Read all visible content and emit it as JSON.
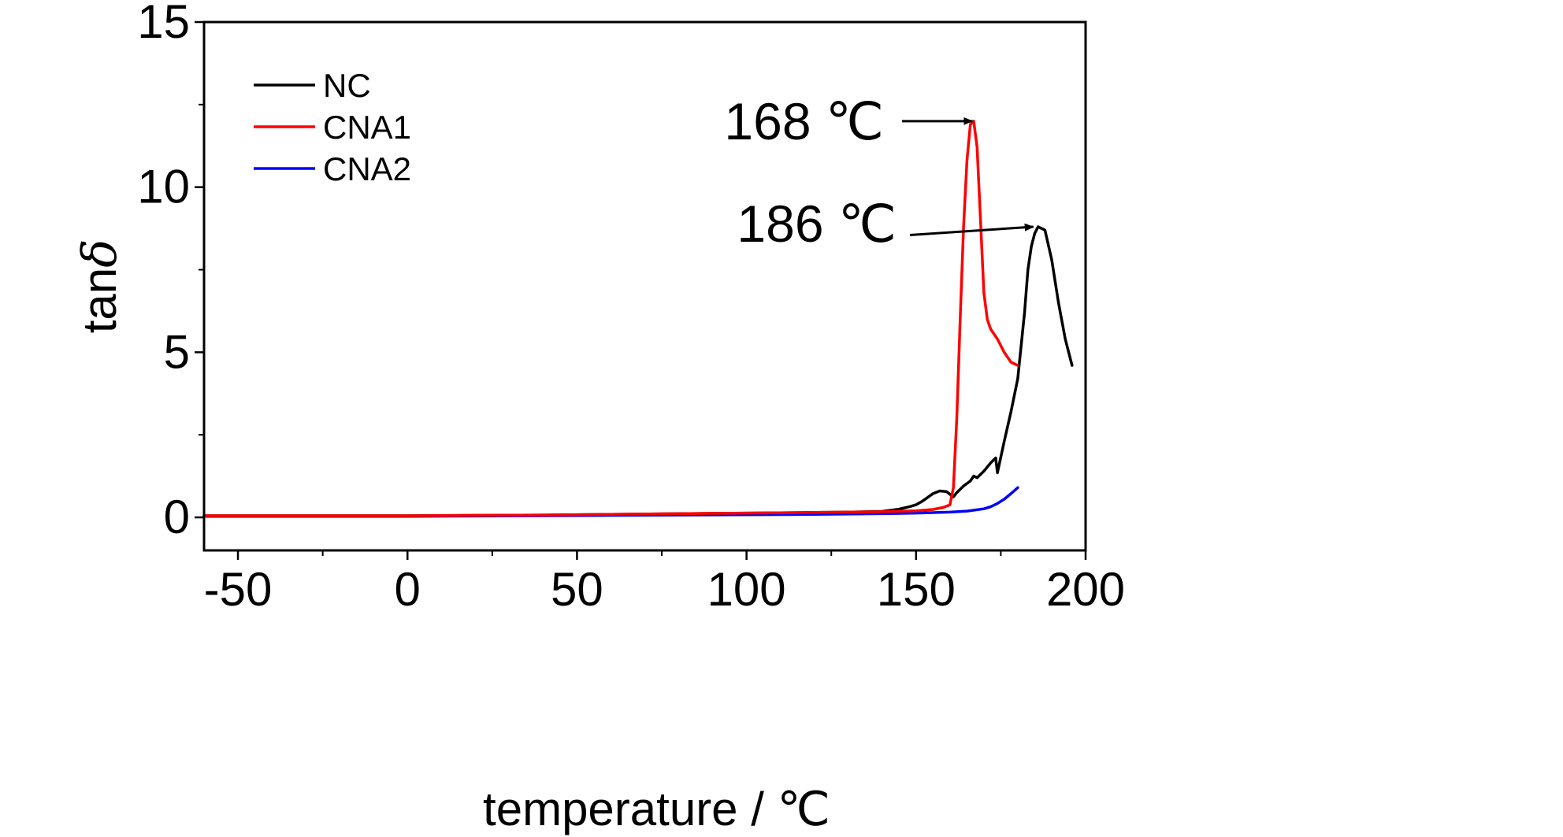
{
  "chart_data": {
    "type": "line",
    "title": "",
    "xlabel": "temperature / ℃",
    "ylabel": "tanδ",
    "ylabel_main": "tan",
    "ylabel_symbol": "δ",
    "xlim": [
      -60,
      200
    ],
    "ylim": [
      -1,
      15
    ],
    "xticks": [
      -50,
      0,
      50,
      100,
      150,
      200
    ],
    "xtick_labels": [
      "-50",
      "0",
      "50",
      "100",
      "150",
      "200"
    ],
    "xminor": [
      -25,
      25,
      75,
      125,
      175
    ],
    "yticks": [
      0,
      5,
      10,
      15
    ],
    "ytick_labels": [
      "0",
      "5",
      "10",
      "15"
    ],
    "yminor": [
      2.5,
      7.5,
      12.5
    ],
    "grid": false,
    "legend_position": "top-left",
    "series": [
      {
        "name": "NC",
        "color": "#000000",
        "x": [
          -60,
          -40,
          -20,
          0,
          20,
          40,
          60,
          80,
          100,
          110,
          120,
          130,
          140,
          145,
          148,
          150,
          152,
          155,
          157,
          159,
          160,
          161,
          162,
          164,
          166,
          167,
          168,
          170,
          172,
          173.5,
          174,
          176,
          178,
          180,
          182,
          183,
          184,
          185,
          186,
          188,
          190,
          192,
          194,
          196
        ],
        "y": [
          0.05,
          0.05,
          0.05,
          0.05,
          0.06,
          0.07,
          0.09,
          0.11,
          0.13,
          0.14,
          0.15,
          0.16,
          0.18,
          0.25,
          0.32,
          0.38,
          0.5,
          0.72,
          0.8,
          0.78,
          0.7,
          0.62,
          0.75,
          0.95,
          1.1,
          1.25,
          1.2,
          1.4,
          1.65,
          1.8,
          1.35,
          2.3,
          3.2,
          4.2,
          6.2,
          7.5,
          8.2,
          8.6,
          8.8,
          8.7,
          7.8,
          6.5,
          5.4,
          4.6
        ]
      },
      {
        "name": "CNA1",
        "color": "#ff0000",
        "x": [
          -60,
          -40,
          -20,
          0,
          20,
          40,
          60,
          80,
          100,
          120,
          140,
          150,
          155,
          158,
          160,
          161,
          162,
          163,
          164,
          165,
          166,
          167,
          168,
          169,
          170,
          171,
          172,
          174,
          176,
          178,
          180
        ],
        "y": [
          0.05,
          0.05,
          0.05,
          0.05,
          0.06,
          0.07,
          0.09,
          0.11,
          0.13,
          0.15,
          0.17,
          0.2,
          0.24,
          0.3,
          0.38,
          0.9,
          3.0,
          6.0,
          8.8,
          10.8,
          11.9,
          12.0,
          11.2,
          9.0,
          6.8,
          6.0,
          5.7,
          5.4,
          5.0,
          4.7,
          4.6
        ]
      },
      {
        "name": "CNA2",
        "color": "#0000ff",
        "x": [
          -60,
          -40,
          -20,
          0,
          20,
          40,
          60,
          80,
          100,
          120,
          140,
          150,
          160,
          165,
          170,
          172,
          174,
          176,
          178,
          180
        ],
        "y": [
          0.03,
          0.03,
          0.03,
          0.03,
          0.04,
          0.05,
          0.06,
          0.07,
          0.08,
          0.09,
          0.11,
          0.13,
          0.16,
          0.19,
          0.26,
          0.32,
          0.42,
          0.55,
          0.72,
          0.9
        ]
      }
    ],
    "annotations": [
      {
        "text": "168 ℃",
        "point": [
          168,
          12.0
        ],
        "arrow_from": [
          154,
          12.0
        ]
      },
      {
        "text": "186 ℃",
        "point": [
          186,
          8.8
        ],
        "arrow_from": [
          157,
          8.55
        ]
      }
    ]
  }
}
